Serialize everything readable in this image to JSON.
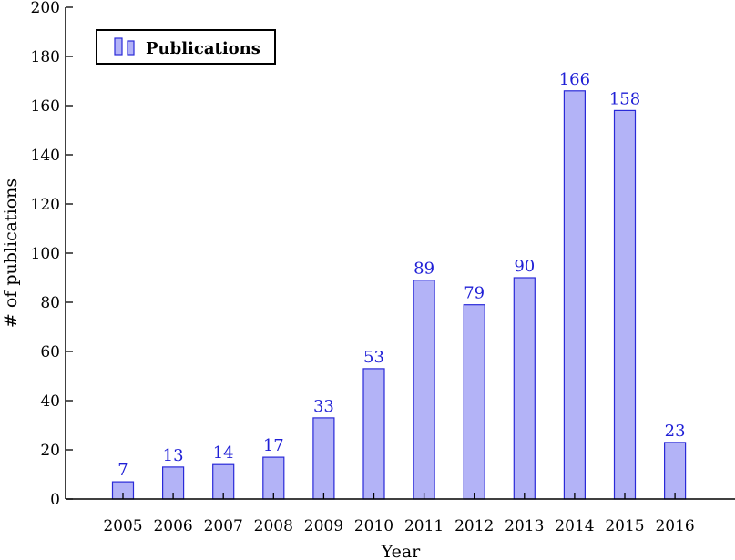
{
  "chart_data": {
    "type": "bar",
    "categories": [
      "2005",
      "2006",
      "2007",
      "2008",
      "2009",
      "2010",
      "2011",
      "2012",
      "2013",
      "2014",
      "2015",
      "2016"
    ],
    "series": [
      {
        "name": "Publications",
        "values": [
          7,
          13,
          14,
          17,
          33,
          53,
          89,
          79,
          90,
          166,
          158,
          23
        ]
      }
    ],
    "xlabel": "Year",
    "ylabel": "# of publications",
    "ylim": [
      0,
      200
    ],
    "yticks": [
      0,
      20,
      40,
      60,
      80,
      100,
      120,
      140,
      160,
      180,
      200
    ],
    "grid": false,
    "legend_position": "top-left",
    "colors": {
      "bar_fill": "#b3b3f7",
      "bar_stroke": "#2a2ad8",
      "data_label": "#1f1fd6",
      "axis": "#000000"
    }
  }
}
